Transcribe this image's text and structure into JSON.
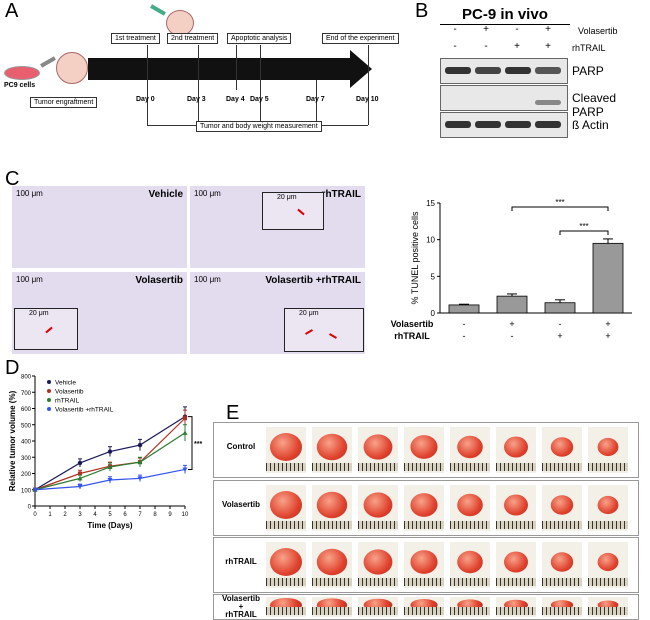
{
  "panels": [
    "A",
    "B",
    "C",
    "D",
    "E"
  ],
  "panel_a": {
    "cells_label": "PC9 cells",
    "engraftment": "Tumor engraftment",
    "treat1": "1st treatment",
    "treat2": "2nd treatment",
    "apoptotic": "Apoptotic analysis",
    "end": "End of the experiment",
    "days": [
      "Day 0",
      "Day 3",
      "Day 4",
      "Day 5",
      "Day 7",
      "Day 10"
    ],
    "measurement": "Tumor and body weight measurement"
  },
  "panel_b": {
    "title": "PC-9 in vivo",
    "row1_label": "Volasertib",
    "row2_label": "rhTRAIL",
    "row1_signs": [
      "-",
      "+",
      "-",
      "+"
    ],
    "row2_signs": [
      "-",
      "-",
      "+",
      "+"
    ],
    "blots": [
      "PARP",
      "Cleaved PARP",
      "ß Actin"
    ]
  },
  "panel_c": {
    "micro": [
      {
        "label": "Vehicle",
        "scale": "100 μm"
      },
      {
        "label": "rhTRAIL",
        "scale": "100 μm",
        "inset": "20 μm"
      },
      {
        "label": "Volasertib",
        "scale": "100 μm",
        "inset": "20 μm"
      },
      {
        "label": "Volasertib +rhTRAIL",
        "scale": "100 μm",
        "inset": "20 μm"
      }
    ]
  },
  "chart_data": [
    {
      "type": "bar",
      "ylabel": "% TUNEL positive cells",
      "ylim": [
        0,
        15
      ],
      "yticks": [
        "0",
        "5",
        "10",
        "15"
      ],
      "values": [
        1.1,
        2.3,
        1.4,
        9.5
      ],
      "errors": [
        0.1,
        0.3,
        0.4,
        0.6
      ],
      "row_labels": [
        "Volasertib",
        "rhTRAIL"
      ],
      "volasertib_signs": [
        "-",
        "+",
        "-",
        "+"
      ],
      "rhtrail_signs": [
        "-",
        "-",
        "+",
        "+"
      ],
      "significance": [
        "***",
        "***"
      ],
      "colors": {
        "bar": "#999999"
      }
    },
    {
      "type": "line",
      "xlabel": "Time (Days)",
      "ylabel": "Relative tumor volume (%)",
      "x": [
        0,
        3,
        5,
        7,
        10
      ],
      "xticks": [
        "0",
        "1",
        "2",
        "3",
        "4",
        "5",
        "6",
        "7",
        "8",
        "9",
        "10"
      ],
      "ylim": [
        0,
        800
      ],
      "yticks": [
        "0",
        "100",
        "200",
        "300",
        "400",
        "500",
        "600",
        "700",
        "800"
      ],
      "series": [
        {
          "name": "Vehicle",
          "values": [
            100,
            265,
            335,
            375,
            550
          ],
          "errors": [
            10,
            25,
            30,
            35,
            60
          ],
          "color": "#1a1a5a",
          "marker": "circle"
        },
        {
          "name": "Volasertib",
          "values": [
            100,
            200,
            245,
            270,
            540
          ],
          "errors": [
            10,
            20,
            25,
            25,
            50
          ],
          "color": "#b03020",
          "marker": "square"
        },
        {
          "name": "rhTRAIL",
          "values": [
            100,
            170,
            240,
            270,
            450
          ],
          "errors": [
            8,
            20,
            25,
            30,
            50
          ],
          "color": "#2e7d32",
          "marker": "triangle"
        },
        {
          "name": "Volasertib +rhTRAIL",
          "values": [
            100,
            120,
            160,
            170,
            225
          ],
          "errors": [
            8,
            15,
            20,
            20,
            25
          ],
          "color": "#3355ee",
          "marker": "triangle-down"
        }
      ],
      "significance": "***"
    }
  ],
  "panel_e": {
    "groups": [
      "Control",
      "Volasertib",
      "rhTRAIL",
      "Volasertib\n+\nrhTRAIL"
    ]
  }
}
